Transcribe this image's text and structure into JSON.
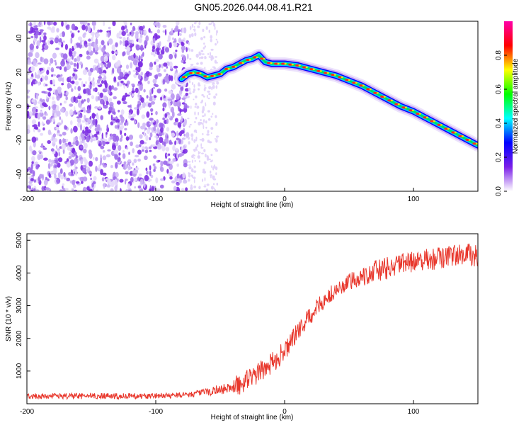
{
  "title": "GN05.2026.044.08.41.R21",
  "chart_data": [
    {
      "type": "heatmap",
      "name": "spectrogram",
      "xlabel": "Height of straight line (km)",
      "ylabel": "Frequency (Hz)",
      "xlim": [
        -200,
        150
      ],
      "ylim": [
        -50,
        50
      ],
      "xticks": [
        -200,
        -100,
        0,
        100
      ],
      "yticks": [
        -40,
        -20,
        0,
        20,
        40
      ],
      "colorbar": {
        "label": "Normalized spectral amplitude",
        "range": [
          0,
          1
        ],
        "ticks": [
          0.0,
          0.2,
          0.4,
          0.6,
          0.8
        ],
        "stops": [
          "#ffffff",
          "#7b1fe8",
          "#0000ff",
          "#00ffff",
          "#00ff00",
          "#ffff00",
          "#ff0000",
          "#ff00aa"
        ]
      },
      "ridge": {
        "x": [
          -80,
          -75,
          -70,
          -65,
          -60,
          -55,
          -50,
          -45,
          -40,
          -35,
          -30,
          -25,
          -20,
          -15,
          -10,
          -5,
          0,
          10,
          20,
          30,
          40,
          50,
          60,
          70,
          80,
          90,
          100,
          110,
          120,
          130,
          140,
          150
        ],
        "y": [
          16,
          19,
          20,
          19,
          17,
          18,
          19,
          22,
          23,
          25,
          27,
          28,
          30,
          26,
          25,
          25,
          25,
          24,
          22,
          20,
          18,
          15,
          12,
          8,
          4,
          0,
          -3,
          -7,
          -11,
          -15,
          -19,
          -23
        ]
      }
    },
    {
      "type": "line",
      "name": "snr",
      "xlabel": "Height of straight line (km)",
      "ylabel": "SNR (10 * v/v)",
      "xlim": [
        -200,
        150
      ],
      "ylim": [
        0,
        5200
      ],
      "xticks": [
        -200,
        -100,
        0,
        100
      ],
      "yticks": [
        1000,
        2000,
        3000,
        4000,
        5000
      ],
      "color": "#e8372c",
      "trend": {
        "x": [
          -200,
          -150,
          -100,
          -80,
          -70,
          -60,
          -50,
          -40,
          -30,
          -20,
          -10,
          0,
          10,
          20,
          30,
          40,
          50,
          60,
          70,
          80,
          90,
          100,
          120,
          140,
          150
        ],
        "y": [
          230,
          230,
          240,
          270,
          300,
          380,
          430,
          500,
          700,
          950,
          1250,
          1600,
          2200,
          2700,
          3150,
          3450,
          3700,
          3900,
          4050,
          4150,
          4250,
          4350,
          4450,
          4600,
          4500
        ]
      }
    }
  ]
}
